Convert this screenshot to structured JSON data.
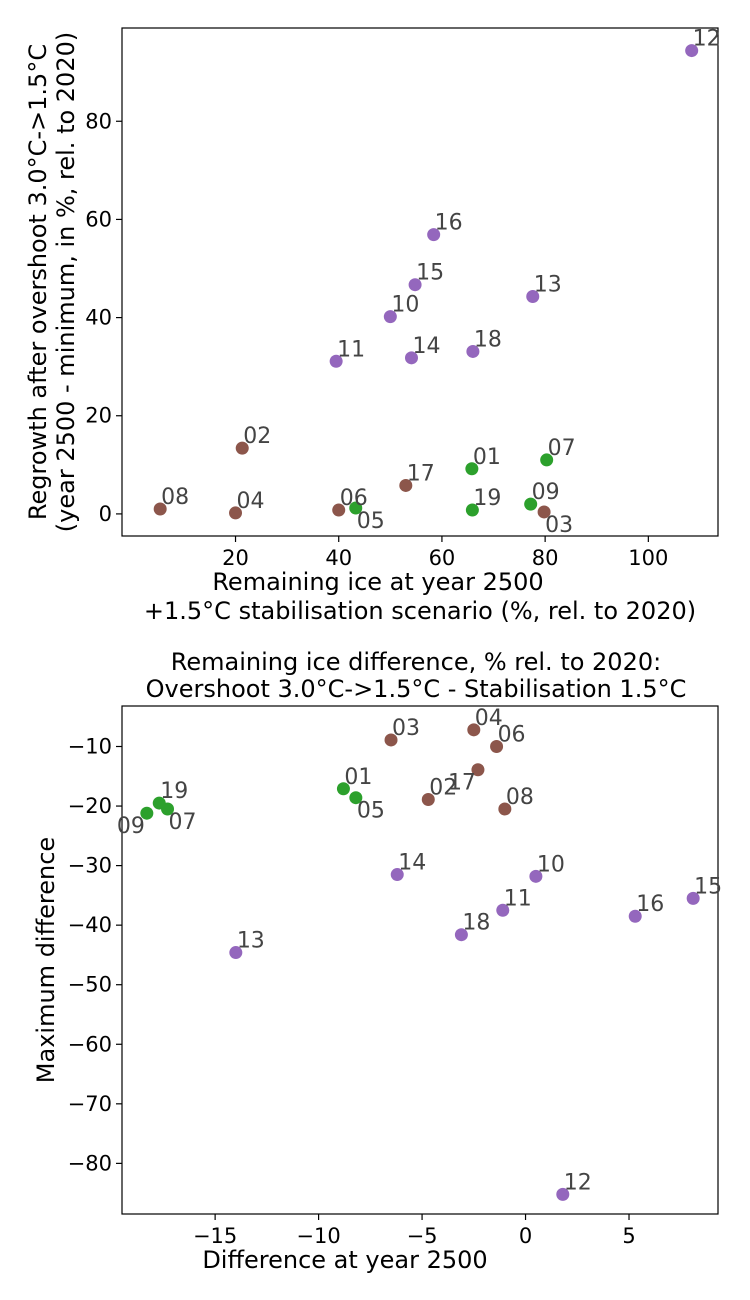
{
  "colors": {
    "purple": "#9467bd",
    "brown": "#8c564b",
    "green": "#2ca02c"
  },
  "chart_data": [
    {
      "type": "scatter",
      "title_lines": [],
      "xlabel_lines": [
        "Remaining ice at year 2500",
        "+1.5°C stabilisation scenario (%, rel. to 2020)"
      ],
      "ylabel_lines": [
        "Regrowth after overshoot 3.0°C->1.5°C",
        "(year 2500 - minimum, in %, rel. to 2020)"
      ],
      "xlim": [
        -2,
        113.5
      ],
      "ylim": [
        -4.5,
        99
      ],
      "xticks": [
        20,
        40,
        60,
        80,
        100
      ],
      "yticks": [
        0,
        20,
        40,
        60,
        80
      ],
      "points": [
        {
          "label": "01",
          "x": 65.8,
          "y": 9.2,
          "color": "green"
        },
        {
          "label": "02",
          "x": 21.3,
          "y": 13.4,
          "color": "brown"
        },
        {
          "label": "03",
          "x": 79.8,
          "y": 0.4,
          "color": "brown",
          "pos": "br"
        },
        {
          "label": "04",
          "x": 20.0,
          "y": 0.2,
          "color": "brown"
        },
        {
          "label": "05",
          "x": 43.3,
          "y": 1.2,
          "color": "green",
          "pos": "br"
        },
        {
          "label": "06",
          "x": 40.0,
          "y": 0.8,
          "color": "brown"
        },
        {
          "label": "07",
          "x": 80.3,
          "y": 11.0,
          "color": "green"
        },
        {
          "label": "08",
          "x": 5.4,
          "y": 1.0,
          "color": "brown"
        },
        {
          "label": "09",
          "x": 77.2,
          "y": 2.0,
          "color": "green"
        },
        {
          "label": "10",
          "x": 50.0,
          "y": 40.2,
          "color": "purple"
        },
        {
          "label": "11",
          "x": 39.5,
          "y": 31.1,
          "color": "purple"
        },
        {
          "label": "12",
          "x": 108.4,
          "y": 94.4,
          "color": "purple"
        },
        {
          "label": "13",
          "x": 77.6,
          "y": 44.3,
          "color": "purple"
        },
        {
          "label": "14",
          "x": 54.1,
          "y": 31.8,
          "color": "purple"
        },
        {
          "label": "15",
          "x": 54.8,
          "y": 46.7,
          "color": "purple"
        },
        {
          "label": "16",
          "x": 58.4,
          "y": 56.9,
          "color": "purple"
        },
        {
          "label": "17",
          "x": 53.0,
          "y": 5.8,
          "color": "brown"
        },
        {
          "label": "18",
          "x": 66.0,
          "y": 33.1,
          "color": "purple"
        },
        {
          "label": "19",
          "x": 65.9,
          "y": 0.8,
          "color": "green"
        }
      ]
    },
    {
      "type": "scatter",
      "title_lines": [
        "Remaining ice difference, % rel. to 2020:",
        "Overshoot 3.0°C->1.5°C - Stabilisation 1.5°C"
      ],
      "xlabel_lines": [
        "Difference at year 2500"
      ],
      "ylabel_lines": [
        "Maximum difference"
      ],
      "xlim": [
        -19.5,
        9.3
      ],
      "ylim": [
        -88.5,
        -3.2
      ],
      "xticks": [
        -15,
        -10,
        -5,
        0,
        5
      ],
      "yticks": [
        -10,
        -20,
        -30,
        -40,
        -50,
        -60,
        -70,
        -80
      ],
      "points": [
        {
          "label": "01",
          "x": -8.8,
          "y": -17.1,
          "color": "green"
        },
        {
          "label": "02",
          "x": -4.7,
          "y": -18.9,
          "color": "brown"
        },
        {
          "label": "03",
          "x": -6.5,
          "y": -8.9,
          "color": "brown"
        },
        {
          "label": "04",
          "x": -2.5,
          "y": -7.2,
          "color": "brown"
        },
        {
          "label": "05",
          "x": -8.2,
          "y": -18.6,
          "color": "green",
          "pos": "br"
        },
        {
          "label": "06",
          "x": -1.4,
          "y": -10.0,
          "color": "brown"
        },
        {
          "label": "07",
          "x": -17.3,
          "y": -20.5,
          "color": "green",
          "pos": "br"
        },
        {
          "label": "08",
          "x": -1.0,
          "y": -20.5,
          "color": "brown"
        },
        {
          "label": "09",
          "x": -18.3,
          "y": -21.2,
          "color": "green",
          "pos": "bl"
        },
        {
          "label": "10",
          "x": 0.5,
          "y": -31.8,
          "color": "purple"
        },
        {
          "label": "11",
          "x": -1.1,
          "y": -37.5,
          "color": "purple"
        },
        {
          "label": "12",
          "x": 1.8,
          "y": -85.2,
          "color": "purple"
        },
        {
          "label": "13",
          "x": -14.0,
          "y": -44.6,
          "color": "purple"
        },
        {
          "label": "14",
          "x": -6.2,
          "y": -31.5,
          "color": "purple"
        },
        {
          "label": "15",
          "x": 8.1,
          "y": -35.5,
          "color": "purple"
        },
        {
          "label": "16",
          "x": 5.3,
          "y": -38.5,
          "color": "purple"
        },
        {
          "label": "17",
          "x": -2.3,
          "y": -13.9,
          "color": "brown",
          "pos": "bl"
        },
        {
          "label": "18",
          "x": -3.1,
          "y": -41.6,
          "color": "purple"
        },
        {
          "label": "19",
          "x": -17.7,
          "y": -19.5,
          "color": "green"
        }
      ]
    }
  ]
}
